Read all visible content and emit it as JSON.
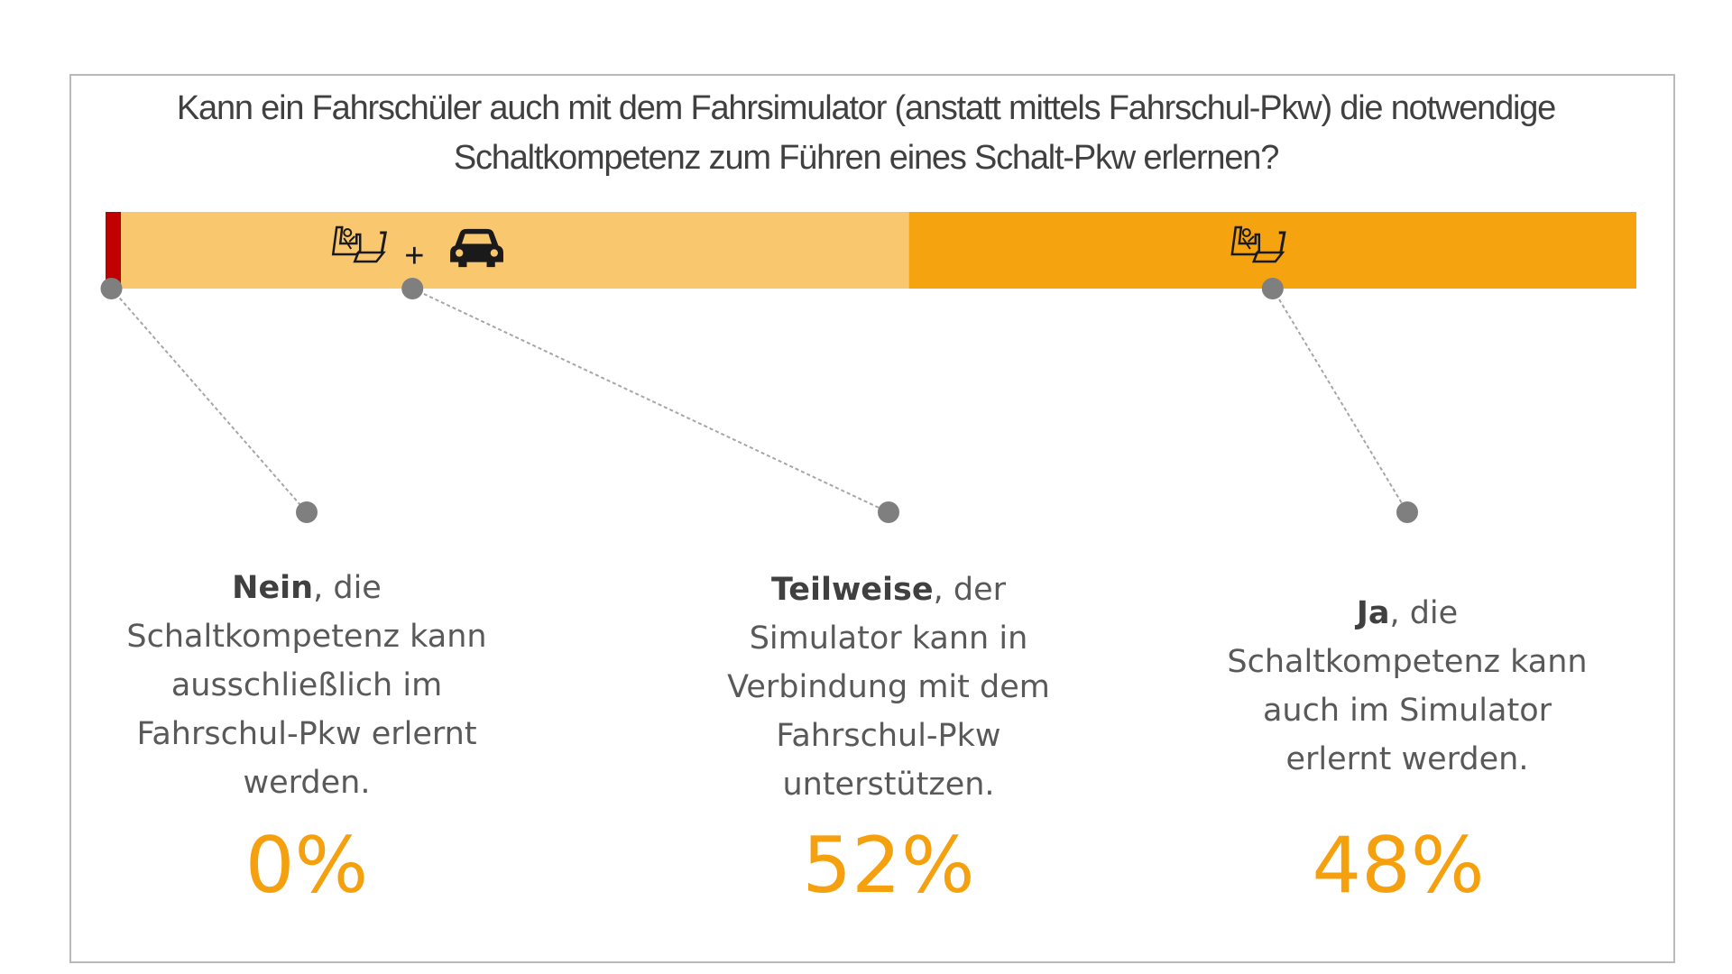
{
  "title": {
    "line1": "Kann ein Fahrschüler auch mit dem Fahrsimulator (anstatt mittels Fahrschul-Pkw) die notwendige",
    "line2": "Schaltkompetenz zum Führen eines Schalt-Pkw erlernen?"
  },
  "colors": {
    "nein": "#c00000",
    "teilweise": "#f9c76e",
    "ja": "#f5a30e",
    "connector": "#7f7f7f",
    "percent_text": "#f5a00e"
  },
  "icons": {
    "teilweise": [
      "driving-seat-icon",
      "plus-sign",
      "car-icon"
    ],
    "ja": [
      "driving-seat-icon"
    ]
  },
  "plus_sign": "+",
  "chart_data": {
    "type": "bar",
    "orientation": "horizontal-stacked-100",
    "categories": [
      "Nein",
      "Teilweise",
      "Ja"
    ],
    "values": [
      0,
      52,
      48
    ],
    "unit": "%",
    "segments": [
      {
        "key": "nein",
        "keyword": "Nein",
        "text": ", die Schaltkompetenz kann ausschließlich im Fahrschul-Pkw erlernt werden.",
        "lines": [
          "Schaltkompetenz kann",
          "ausschließlich im",
          "Fahrschul-Pkw erlernt",
          "werden."
        ],
        "first_line_rest": ", die",
        "percent_label": "0%",
        "value": 0
      },
      {
        "key": "teilweise",
        "keyword": "Teilweise",
        "text": ", der Simulator kann in Verbindung mit dem Fahrschul-Pkw unterstützen.",
        "lines": [
          "Simulator kann in",
          "Verbindung mit dem",
          "Fahrschul-Pkw",
          "unterstützen."
        ],
        "first_line_rest": ", der",
        "percent_label": "52%",
        "value": 52
      },
      {
        "key": "ja",
        "keyword": "Ja",
        "text": ", die Schaltkompetenz kann auch im Simulator erlernt werden.",
        "lines": [
          "Schaltkompetenz kann",
          "auch im Simulator",
          "erlernt werden."
        ],
        "first_line_rest": ", die",
        "percent_label": "48%",
        "value": 48
      }
    ]
  }
}
